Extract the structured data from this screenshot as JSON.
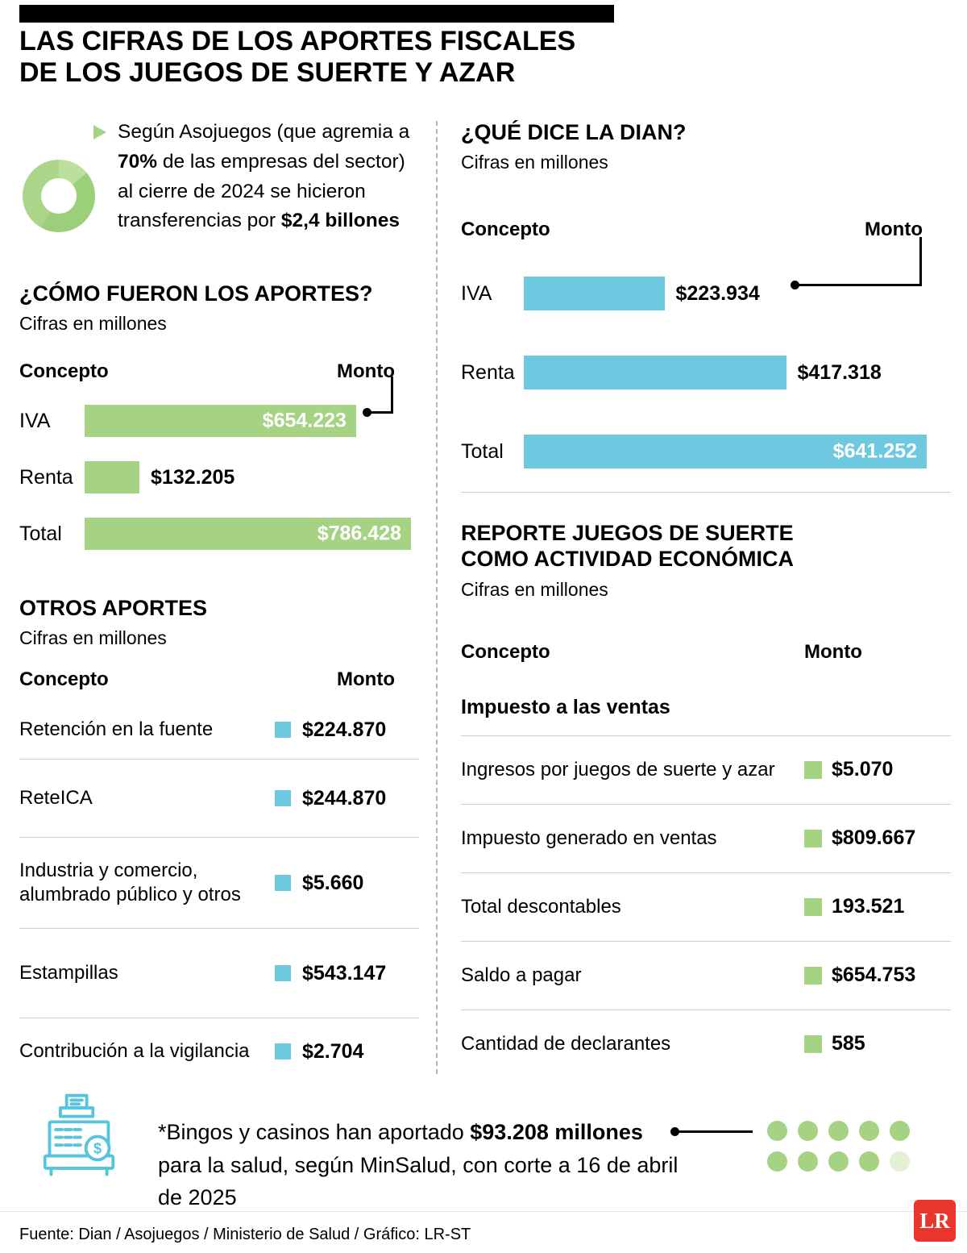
{
  "header": {
    "title": "LAS CIFRAS DE LOS APORTES FISCALES\nDE LOS JUEGOS DE SUERTE Y AZAR"
  },
  "intro": {
    "part1": "Según Asojuegos (que agremia a ",
    "bold1": "70%",
    "part2": " de las empresas del sector) al cierre de 2024 se hicieron transferencias por ",
    "bold2": "$2,4 billones"
  },
  "chart_data": [
    {
      "type": "bar",
      "title": "¿CÓMO FUERON LOS APORTES?",
      "subtitle": "Cifras en millones",
      "columns": {
        "concept": "Concepto",
        "amount": "Monto"
      },
      "color": "#a5d283",
      "unit": "millones de pesos",
      "bars": [
        {
          "label": "IVA",
          "value": 654223,
          "display": "$654.223",
          "width_pct": 83.2
        },
        {
          "label": "Renta",
          "value": 132205,
          "display": "$132.205",
          "width_pct": 16.8
        },
        {
          "label": "Total",
          "value": 786428,
          "display": "$786.428",
          "width_pct": 100
        }
      ]
    },
    {
      "type": "bar",
      "title": "¿QUÉ DICE LA DIAN?",
      "subtitle": "Cifras en millones",
      "columns": {
        "concept": "Concepto",
        "amount": "Monto"
      },
      "color": "#6ec9e0",
      "unit": "millones de pesos",
      "bars": [
        {
          "label": "IVA",
          "value": 223934,
          "display": "$223.934",
          "width_pct": 34.9
        },
        {
          "label": "Renta",
          "value": 417318,
          "display": "$417.318",
          "width_pct": 65.1
        },
        {
          "label": "Total",
          "value": 641252,
          "display": "$641.252",
          "width_pct": 100
        }
      ]
    },
    {
      "type": "table",
      "title": "OTROS APORTES",
      "subtitle": "Cifras en millones",
      "columns": {
        "concept": "Concepto",
        "amount": "Monto"
      },
      "marker_color": "#6ec9e0",
      "rows": [
        {
          "label": "Retención en la fuente",
          "display": "$224.870",
          "value": 224870
        },
        {
          "label": "ReteICA",
          "display": "$244.870",
          "value": 244870
        },
        {
          "label": "Industria y comercio,\nalumbrado público y otros",
          "display": "$5.660",
          "value": 5660
        },
        {
          "label": "Estampillas",
          "display": "$543.147",
          "value": 543147
        },
        {
          "label": "Contribución a la vigilancia",
          "display": "$2.704",
          "value": 2704
        }
      ]
    },
    {
      "type": "table",
      "title": "REPORTE JUEGOS DE SUERTE\nCOMO ACTIVIDAD ECONÓMICA",
      "subtitle": "Cifras en millones",
      "columns": {
        "concept": "Concepto",
        "amount": "Monto"
      },
      "group_header": "Impuesto a las ventas",
      "marker_color": "#a5d283",
      "rows": [
        {
          "label": "Ingresos por juegos de suerte y azar",
          "display": "$5.070",
          "value": 5070
        },
        {
          "label": "Impuesto generado en ventas",
          "display": "$809.667",
          "value": 809667
        },
        {
          "label": "Total descontables",
          "display": "193.521",
          "value": 193521
        },
        {
          "label": "Saldo a pagar",
          "display": "$654.753",
          "value": 654753
        },
        {
          "label": "Cantidad de declarantes",
          "display": "585",
          "value": 585
        }
      ]
    }
  ],
  "footnote": {
    "part1": "*Bingos y casinos han aportado ",
    "bold1": "$93.208 millones",
    "part2": " para la salud, según MinSalud, con corte a 16 de abril de 2025"
  },
  "dots": {
    "total": 10,
    "per_row": 5,
    "light_last": true,
    "color": "#a5d283",
    "light_color": "#e3f0d3"
  },
  "footer": {
    "source": "Fuente: Dian / Asojuegos / Ministerio de Salud / Gráfico: LR-ST",
    "logo": "LR"
  },
  "colors": {
    "green": "#a5d283",
    "cyan": "#6ec9e0",
    "red": "#e8352e",
    "black": "#000000"
  }
}
